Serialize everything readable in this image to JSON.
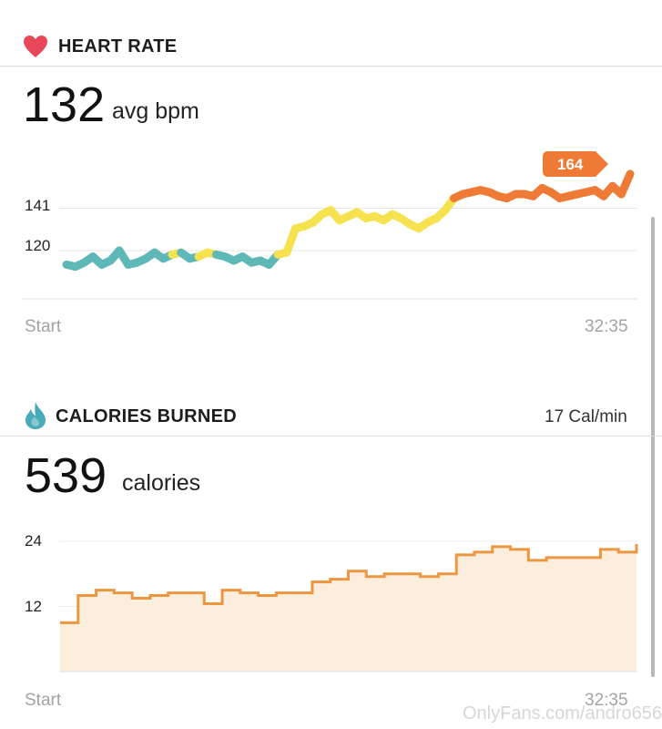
{
  "heart_rate": {
    "title": "HEART RATE",
    "icon": "heart-icon",
    "icon_color": "#e8475a",
    "value": "132",
    "unit": "avg bpm",
    "y_ticks": [
      "141",
      "120"
    ],
    "x_start": "Start",
    "x_end": "32:35",
    "peak_label": "164",
    "colors": {
      "low": "#5fb8b8",
      "mid": "#f6e24e",
      "high": "#ef7a35",
      "peak_badge": "#ef7a35"
    }
  },
  "calories": {
    "title": "CALORIES BURNED",
    "icon": "drop-icon",
    "icon_color": "#49aab8",
    "rate": "17 Cal/min",
    "value": "539",
    "unit": "calories",
    "y_ticks": [
      "24",
      "12"
    ],
    "x_start": "Start",
    "x_end": "32:35",
    "colors": {
      "line": "#ec9640",
      "fill": "#fbeedd"
    }
  },
  "watermark": "OnlyFans.com/andro656",
  "chart_data": [
    {
      "type": "line",
      "title": "HEART RATE",
      "xlabel": "",
      "ylabel": "",
      "x_range": [
        "Start",
        "32:35"
      ],
      "yticks": [
        120,
        141
      ],
      "ylim": [
        96,
        172
      ],
      "series": [
        {
          "x": [
            0,
            1,
            2,
            3,
            4,
            5,
            6,
            7,
            8,
            9,
            10,
            11,
            12,
            13,
            14,
            15,
            16,
            17,
            18,
            19,
            20,
            21,
            22,
            23,
            24,
            25,
            26,
            27,
            28,
            29,
            30,
            31,
            32,
            33,
            34,
            35,
            36,
            37,
            38,
            39,
            40,
            41,
            42,
            43,
            44,
            45,
            46,
            47,
            48,
            49,
            50,
            51,
            52,
            53,
            54,
            55,
            56,
            57,
            58,
            59,
            60,
            61,
            62,
            63,
            64
          ],
          "values": [
            113,
            112,
            114,
            117,
            113,
            115,
            120,
            113,
            114,
            116,
            119,
            116,
            118,
            119,
            116,
            117,
            119,
            118,
            117,
            115,
            117,
            114,
            115,
            113,
            118,
            119,
            131,
            132,
            134,
            138,
            140,
            135,
            137,
            139,
            136,
            137,
            135,
            138,
            136,
            133,
            131,
            134,
            136,
            140,
            146,
            148,
            149,
            150,
            149,
            147,
            146,
            148,
            148,
            147,
            151,
            149,
            146,
            147,
            148,
            149,
            150,
            147,
            152,
            148,
            158
          ]
        }
      ]
    },
    {
      "type": "line",
      "title": "CALORIES BURNED",
      "xlabel": "",
      "ylabel": "",
      "x_range": [
        "Start",
        "32:35"
      ],
      "yticks": [
        12,
        24
      ],
      "ylim": [
        0,
        25
      ],
      "series": [
        {
          "x": [
            0,
            1,
            2,
            3,
            4,
            5,
            6,
            7,
            8,
            9,
            10,
            11,
            12,
            13,
            14,
            15,
            16,
            17,
            18,
            19,
            20,
            21,
            22,
            23,
            24,
            25,
            26,
            27,
            28,
            29,
            30,
            31,
            32
          ],
          "values": [
            9,
            14,
            15,
            14.5,
            13.5,
            14,
            14.5,
            14.5,
            12.5,
            15,
            14.5,
            14,
            14.5,
            14.5,
            16.5,
            17,
            18.5,
            17.5,
            18,
            18,
            17.5,
            18,
            21.5,
            22,
            23,
            22.5,
            20.5,
            21,
            21,
            21,
            22.5,
            22,
            23.5
          ]
        }
      ]
    }
  ]
}
